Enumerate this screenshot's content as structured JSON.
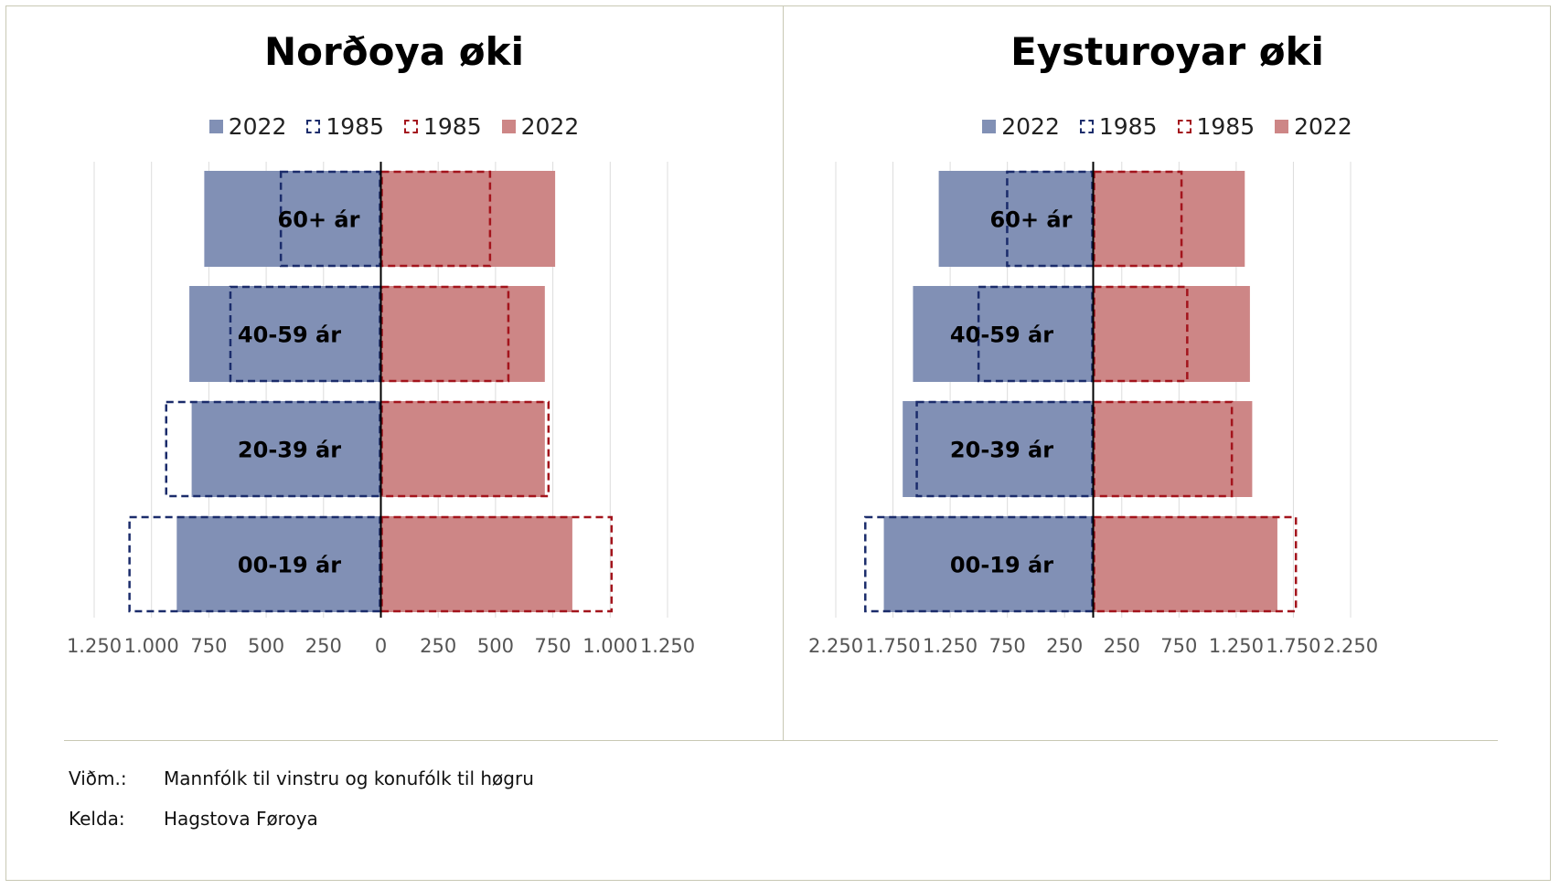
{
  "chart_data": [
    {
      "type": "bar",
      "title": "Norðoya øki",
      "legend": [
        "2022",
        "1985",
        "1985",
        "2022"
      ],
      "categories": [
        "60+ ár",
        "40-59 ár",
        "20-39 ár",
        "00-19 ár"
      ],
      "series": [
        {
          "name": "2022",
          "side": "left",
          "style": "filled",
          "color": "#8190b5",
          "values": [
            770,
            835,
            825,
            890
          ]
        },
        {
          "name": "1985",
          "side": "left",
          "style": "dashed",
          "color": "#1b2c6b",
          "values": [
            440,
            660,
            940,
            1100
          ]
        },
        {
          "name": "1985",
          "side": "right",
          "style": "dashed",
          "color": "#a3141c",
          "values": [
            480,
            560,
            735,
            1010
          ]
        },
        {
          "name": "2022",
          "side": "right",
          "style": "filled",
          "color": "#cd8686",
          "values": [
            760,
            715,
            715,
            835
          ]
        }
      ],
      "xlim": [
        -1250,
        1250
      ],
      "ticks": [
        -1250,
        -1000,
        -750,
        -500,
        -250,
        0,
        250,
        500,
        750,
        1000,
        1250
      ],
      "tick_labels": [
        "1.250",
        "1.000",
        "750",
        "500",
        "250",
        "0",
        "250",
        "500",
        "750",
        "1.000",
        "1.250"
      ],
      "grid": true,
      "legend_position": "top"
    },
    {
      "type": "bar",
      "title": "Eysturoyar øki",
      "legend": [
        "2022",
        "1985",
        "1985",
        "2022"
      ],
      "categories": [
        "60+ ár",
        "40-59 ár",
        "20-39 ár",
        "00-19 ár"
      ],
      "series": [
        {
          "name": "2022",
          "side": "left",
          "style": "filled",
          "color": "#8190b5",
          "values": [
            1350,
            1575,
            1665,
            1830
          ]
        },
        {
          "name": "1985",
          "side": "left",
          "style": "dashed",
          "color": "#1b2c6b",
          "values": [
            760,
            1010,
            1550,
            2000
          ]
        },
        {
          "name": "1985",
          "side": "right",
          "style": "dashed",
          "color": "#a3141c",
          "values": [
            780,
            830,
            1220,
            1780
          ]
        },
        {
          "name": "2022",
          "side": "right",
          "style": "filled",
          "color": "#cd8686",
          "values": [
            1325,
            1370,
            1390,
            1610
          ]
        }
      ],
      "xlim": [
        -2250,
        2250
      ],
      "ticks": [
        -2250,
        -1750,
        -1250,
        -750,
        -250,
        250,
        750,
        1250,
        1750,
        2250
      ],
      "tick_labels": [
        "2.250",
        "1.750",
        "1.250",
        "750",
        "250",
        "250",
        "750",
        "1.250",
        "1.750",
        "2.250"
      ],
      "grid": true,
      "legend_position": "top"
    }
  ],
  "notes": {
    "remark_label": "Viðm.:",
    "remark_text": "Mannfólk til vinstru og konufólk til høgru",
    "source_label": "Kelda:",
    "source_text": "Hagstova Føroya"
  }
}
